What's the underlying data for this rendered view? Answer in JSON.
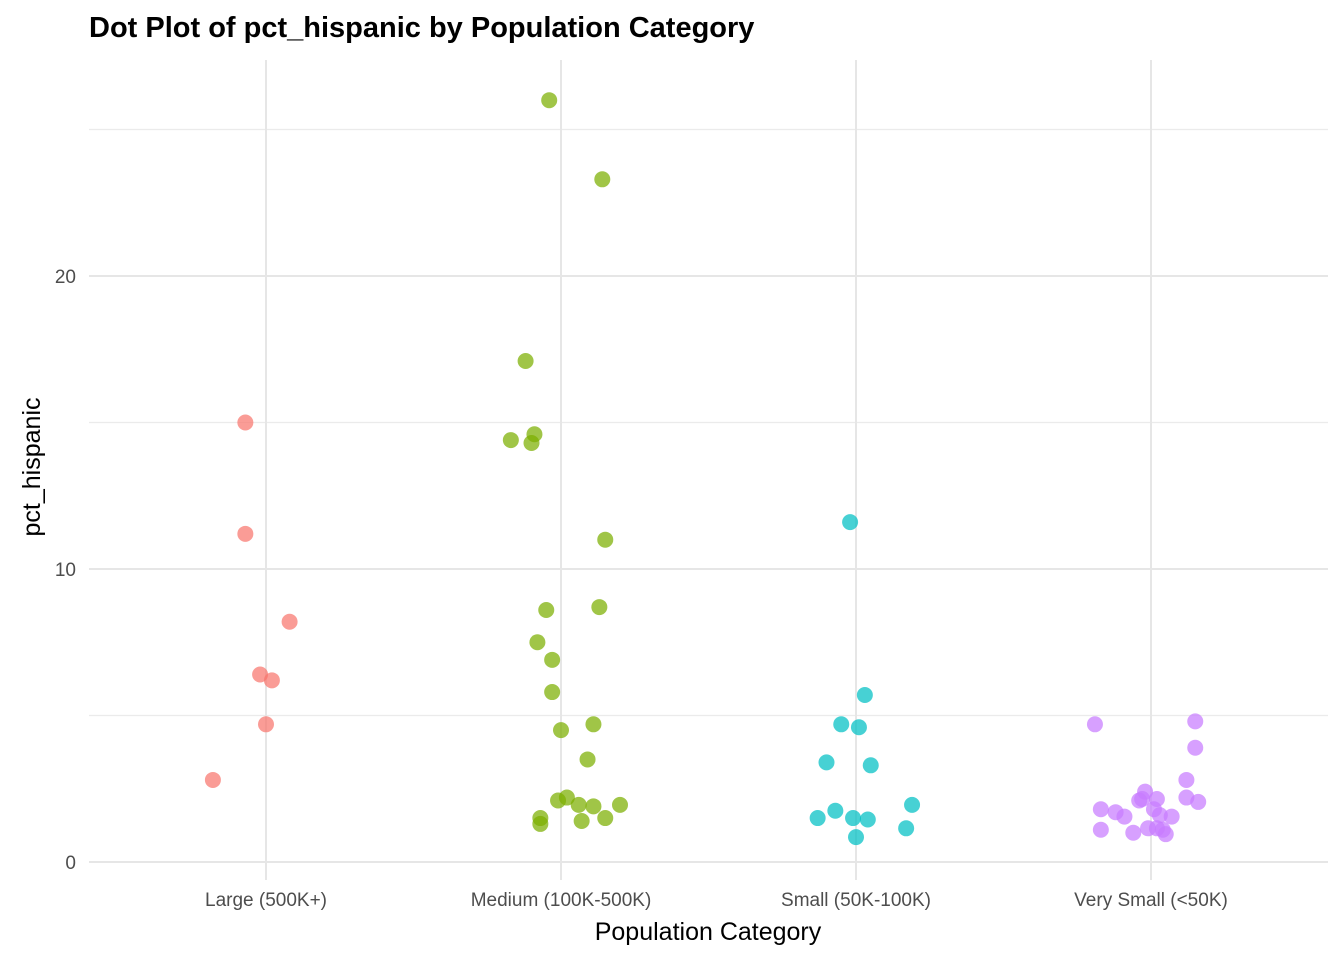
{
  "chart_data": {
    "type": "scatter",
    "title": "Dot Plot of pct_hispanic by Population Category",
    "xlabel": "Population Category",
    "ylabel": "pct_hispanic",
    "categories": [
      "Large (500K+)",
      "Medium (100K-500K)",
      "Small (50K-100K)",
      "Very Small (<50K)"
    ],
    "ylim": [
      -0.6,
      27.5
    ],
    "yticks": [
      0,
      10,
      20
    ],
    "yticks_minor": [
      5,
      15,
      25
    ],
    "grid": true,
    "legend": "none",
    "colors": [
      "#F8766D",
      "#7CAE00",
      "#00BFC4",
      "#C77CFF"
    ],
    "series": [
      {
        "category": "Large (500K+)",
        "points": [
          {
            "jitter": -0.07,
            "y": 15.0
          },
          {
            "jitter": -0.07,
            "y": 11.2
          },
          {
            "jitter": 0.08,
            "y": 8.2
          },
          {
            "jitter": -0.02,
            "y": 6.4
          },
          {
            "jitter": 0.02,
            "y": 6.2
          },
          {
            "jitter": 0.0,
            "y": 4.7
          },
          {
            "jitter": -0.18,
            "y": 2.8
          }
        ]
      },
      {
        "category": "Medium (100K-500K)",
        "points": [
          {
            "jitter": -0.04,
            "y": 26.0
          },
          {
            "jitter": 0.14,
            "y": 23.3
          },
          {
            "jitter": -0.12,
            "y": 17.1
          },
          {
            "jitter": -0.09,
            "y": 14.6
          },
          {
            "jitter": -0.17,
            "y": 14.4
          },
          {
            "jitter": -0.1,
            "y": 14.3
          },
          {
            "jitter": 0.15,
            "y": 11.0
          },
          {
            "jitter": -0.05,
            "y": 8.6
          },
          {
            "jitter": 0.13,
            "y": 8.7
          },
          {
            "jitter": -0.08,
            "y": 7.5
          },
          {
            "jitter": -0.03,
            "y": 6.9
          },
          {
            "jitter": -0.03,
            "y": 5.8
          },
          {
            "jitter": 0.11,
            "y": 4.7
          },
          {
            "jitter": 0.0,
            "y": 4.5
          },
          {
            "jitter": 0.09,
            "y": 3.5
          },
          {
            "jitter": -0.01,
            "y": 2.1
          },
          {
            "jitter": 0.02,
            "y": 2.2
          },
          {
            "jitter": 0.06,
            "y": 1.95
          },
          {
            "jitter": 0.11,
            "y": 1.9
          },
          {
            "jitter": 0.2,
            "y": 1.95
          },
          {
            "jitter": -0.07,
            "y": 1.5
          },
          {
            "jitter": -0.07,
            "y": 1.3
          },
          {
            "jitter": 0.07,
            "y": 1.4
          },
          {
            "jitter": 0.15,
            "y": 1.5
          }
        ]
      },
      {
        "category": "Small (50K-100K)",
        "points": [
          {
            "jitter": -0.02,
            "y": 11.6
          },
          {
            "jitter": 0.03,
            "y": 5.7
          },
          {
            "jitter": -0.05,
            "y": 4.7
          },
          {
            "jitter": 0.01,
            "y": 4.6
          },
          {
            "jitter": -0.1,
            "y": 3.4
          },
          {
            "jitter": 0.05,
            "y": 3.3
          },
          {
            "jitter": 0.19,
            "y": 1.95
          },
          {
            "jitter": -0.07,
            "y": 1.75
          },
          {
            "jitter": -0.13,
            "y": 1.5
          },
          {
            "jitter": -0.01,
            "y": 1.5
          },
          {
            "jitter": 0.04,
            "y": 1.45
          },
          {
            "jitter": 0.17,
            "y": 1.15
          },
          {
            "jitter": 0.0,
            "y": 0.85
          }
        ]
      },
      {
        "category": "Very Small (<50K)",
        "points": [
          {
            "jitter": -0.19,
            "y": 4.7
          },
          {
            "jitter": 0.15,
            "y": 4.8
          },
          {
            "jitter": 0.15,
            "y": 3.9
          },
          {
            "jitter": 0.12,
            "y": 2.8
          },
          {
            "jitter": -0.02,
            "y": 2.4
          },
          {
            "jitter": 0.02,
            "y": 2.15
          },
          {
            "jitter": -0.04,
            "y": 2.1
          },
          {
            "jitter": -0.03,
            "y": 2.15
          },
          {
            "jitter": 0.12,
            "y": 2.2
          },
          {
            "jitter": 0.16,
            "y": 2.05
          },
          {
            "jitter": -0.17,
            "y": 1.8
          },
          {
            "jitter": -0.12,
            "y": 1.7
          },
          {
            "jitter": -0.09,
            "y": 1.55
          },
          {
            "jitter": 0.01,
            "y": 1.8
          },
          {
            "jitter": 0.03,
            "y": 1.6
          },
          {
            "jitter": 0.07,
            "y": 1.55
          },
          {
            "jitter": -0.17,
            "y": 1.1
          },
          {
            "jitter": -0.06,
            "y": 1.0
          },
          {
            "jitter": -0.01,
            "y": 1.15
          },
          {
            "jitter": 0.02,
            "y": 1.15
          },
          {
            "jitter": 0.04,
            "y": 1.1
          },
          {
            "jitter": 0.05,
            "y": 0.95
          }
        ]
      }
    ]
  }
}
